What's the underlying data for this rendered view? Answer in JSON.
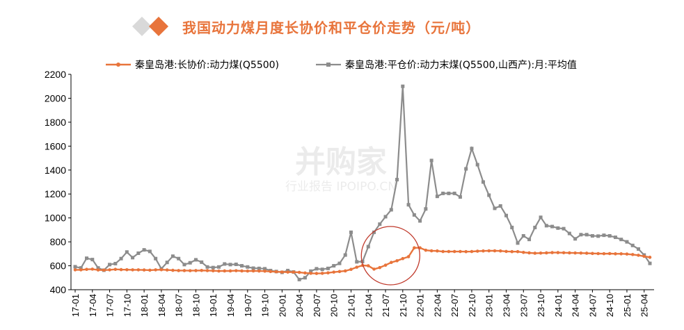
{
  "title": "我国动力煤月度长协价和平仓价走势（元/吨）",
  "colors": {
    "long_term": "#e8743b",
    "spot": "#8c8c8c",
    "deco_grey": "#d9d9d9",
    "deco_orange": "#e8743b"
  },
  "watermark": {
    "brand": "并购家",
    "sub": "行业报告 IPOIPO.CN"
  },
  "chart_data": {
    "type": "line",
    "title": "我国动力煤月度长协价和平仓价走势（元/吨）",
    "ylim": [
      400,
      2200
    ],
    "yticks": [
      400,
      600,
      800,
      1000,
      1200,
      1400,
      1600,
      1800,
      2000,
      2200
    ],
    "grid": false,
    "legend_position": "top",
    "x": [
      "17-01",
      "17-02",
      "17-03",
      "17-04",
      "17-05",
      "17-06",
      "17-07",
      "17-08",
      "17-09",
      "17-10",
      "17-11",
      "17-12",
      "18-01",
      "18-02",
      "18-03",
      "18-04",
      "18-05",
      "18-06",
      "18-07",
      "18-08",
      "18-09",
      "18-10",
      "18-11",
      "18-12",
      "19-01",
      "19-02",
      "19-03",
      "19-04",
      "19-05",
      "19-06",
      "19-07",
      "19-08",
      "19-09",
      "19-10",
      "19-11",
      "19-12",
      "20-01",
      "20-02",
      "20-03",
      "20-04",
      "20-05",
      "20-06",
      "20-07",
      "20-08",
      "20-09",
      "20-10",
      "20-11",
      "20-12",
      "21-01",
      "21-02",
      "21-03",
      "21-04",
      "21-05",
      "21-06",
      "21-07",
      "21-08",
      "21-09",
      "21-10",
      "21-11",
      "21-12",
      "22-01",
      "22-02",
      "22-03",
      "22-04",
      "22-05",
      "22-06",
      "22-07",
      "22-08",
      "22-09",
      "22-10",
      "22-11",
      "22-12",
      "23-01",
      "23-02",
      "23-03",
      "23-04",
      "23-05",
      "23-06",
      "23-07",
      "23-08",
      "23-09",
      "23-10",
      "23-11",
      "23-12",
      "24-01",
      "24-02",
      "24-03",
      "24-04",
      "24-05",
      "24-06",
      "24-07",
      "24-08",
      "24-09",
      "24-10",
      "24-11",
      "24-12",
      "25-01",
      "25-02",
      "25-03",
      "25-04",
      "25-05"
    ],
    "xtick_labels": [
      "17-01",
      "17-04",
      "17-07",
      "17-10",
      "18-01",
      "18-04",
      "18-07",
      "18-10",
      "19-01",
      "19-04",
      "19-07",
      "19-10",
      "20-01",
      "20-04",
      "20-07",
      "20-10",
      "21-01",
      "21-04",
      "21-07",
      "21-10",
      "22-01",
      "22-04",
      "22-07",
      "22-10",
      "23-01",
      "23-04",
      "23-07",
      "23-10",
      "24-01",
      "24-04",
      "24-07",
      "24-10",
      "25-01",
      "25-04"
    ],
    "series": [
      {
        "name": "秦皇岛港:长协价:动力煤(Q5500)",
        "values": [
          566,
          566,
          570,
          572,
          565,
          564,
          566,
          570,
          568,
          567,
          566,
          566,
          565,
          563,
          566,
          567,
          565,
          562,
          560,
          560,
          559,
          560,
          561,
          560,
          558,
          556,
          557,
          557,
          559,
          557,
          556,
          557,
          556,
          555,
          552,
          550,
          548,
          547,
          547,
          545,
          540,
          537,
          536,
          537,
          541,
          547,
          552,
          557,
          570,
          588,
          603,
          600,
          572,
          585,
          605,
          628,
          642,
          660,
          676,
          750,
          750,
          730,
          725,
          724,
          719,
          719,
          719,
          719,
          718,
          719,
          722,
          724,
          725,
          725,
          724,
          720,
          718,
          718,
          712,
          708,
          705,
          706,
          708,
          710,
          710,
          709,
          708,
          707,
          706,
          705,
          703,
          702,
          701,
          702,
          700,
          700,
          698,
          694,
          688,
          679,
          671
        ]
      },
      {
        "name": "秦皇岛港:平仓价:动力末煤(Q5500,山西产):月:平均值",
        "values": [
          592,
          582,
          663,
          652,
          582,
          563,
          610,
          618,
          660,
          715,
          668,
          705,
          733,
          720,
          660,
          575,
          628,
          680,
          660,
          610,
          625,
          650,
          630,
          590,
          585,
          590,
          615,
          610,
          612,
          600,
          590,
          580,
          578,
          575,
          560,
          552,
          545,
          560,
          548,
          485,
          500,
          555,
          575,
          570,
          578,
          600,
          620,
          690,
          880,
          633,
          635,
          760,
          880,
          948,
          1010,
          1068,
          1320,
          2100,
          1110,
          1025,
          975,
          1075,
          1480,
          1180,
          1205,
          1205,
          1205,
          1175,
          1410,
          1580,
          1445,
          1300,
          1190,
          1080,
          1100,
          1020,
          920,
          790,
          850,
          820,
          920,
          1005,
          935,
          928,
          915,
          910,
          870,
          825,
          860,
          860,
          850,
          848,
          855,
          850,
          838,
          820,
          800,
          770,
          740,
          690,
          620
        ]
      }
    ]
  }
}
